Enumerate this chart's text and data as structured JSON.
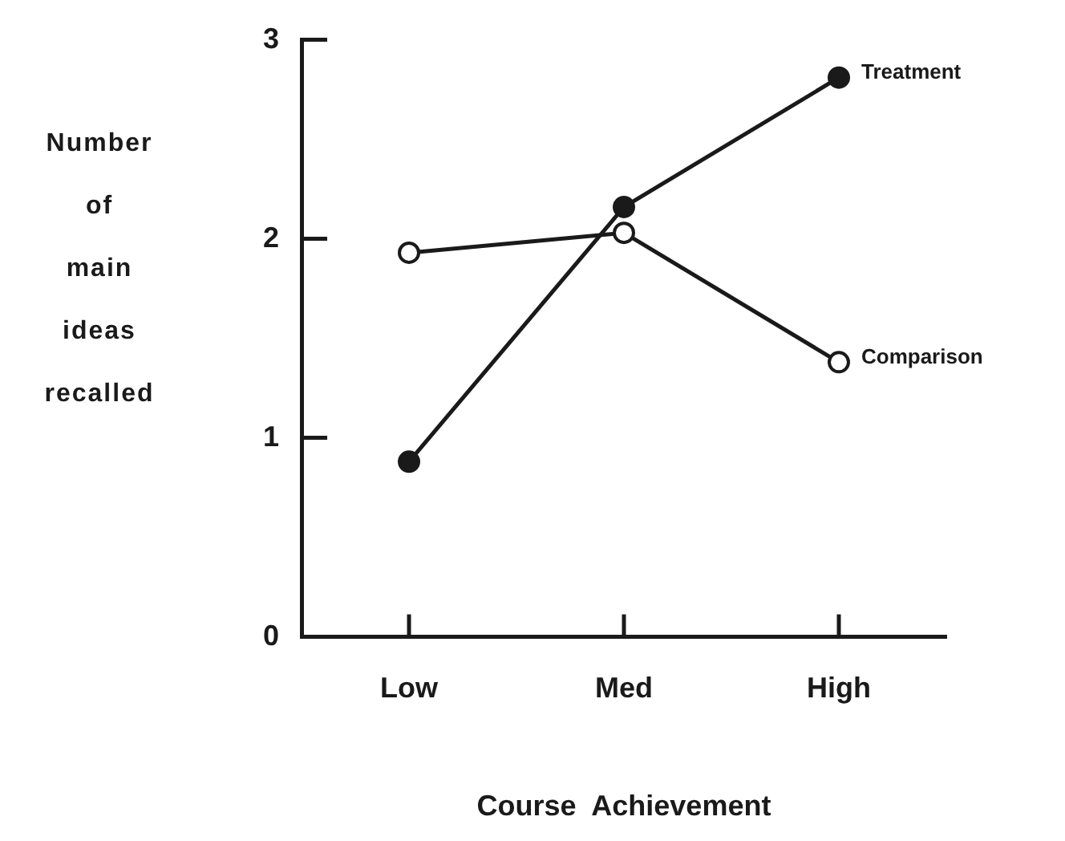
{
  "chart_data": {
    "type": "line",
    "xlabel": "Course  Achievement",
    "ylabel": "Number of main ideas recalled",
    "categories": [
      "Low",
      "Med",
      "High"
    ],
    "series": [
      {
        "name": "Treatment",
        "color": "#1a1a1a",
        "values": [
          0.88,
          2.16,
          2.81
        ]
      },
      {
        "name": "Comparison",
        "color": "#1a1a1a",
        "values": [
          1.93,
          2.03,
          1.38
        ]
      }
    ],
    "ylim": [
      0,
      3
    ],
    "yticks": [
      0,
      1,
      2,
      3
    ],
    "marker": "circle",
    "line_style": "solid",
    "legend": false,
    "grid": false
  }
}
